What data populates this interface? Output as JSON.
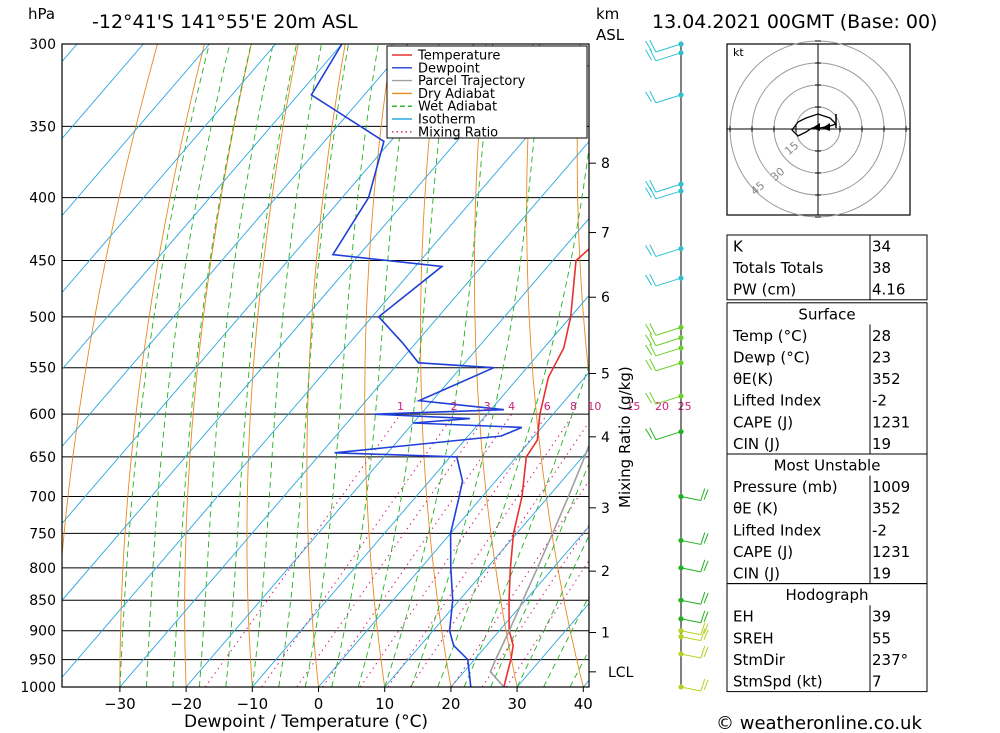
{
  "header": {
    "location": "-12°41'S  141°55'E  20m  ASL",
    "datetime": "13.04.2021  00GMT  (Base: 00)",
    "pressure_unit": "hPa",
    "height_unit_km": "km",
    "height_unit_asl": "ASL"
  },
  "footer": {
    "credit": "© weatheronline.co.uk"
  },
  "legend": [
    {
      "label": "Temperature",
      "color": "#e83030",
      "style": "solid"
    },
    {
      "label": "Dewpoint",
      "color": "#1f3fd8",
      "style": "solid"
    },
    {
      "label": "Parcel Trajectory",
      "color": "#a0a0a0",
      "style": "solid"
    },
    {
      "label": "Dry Adiabat",
      "color": "#e8891f",
      "style": "solid"
    },
    {
      "label": "Wet Adiabat",
      "color": "#22b022",
      "style": "dashed"
    },
    {
      "label": "Isotherm",
      "color": "#2aa7e0",
      "style": "solid"
    },
    {
      "label": "Mixing Ratio",
      "color": "#d0207a",
      "style": "dotted"
    }
  ],
  "chart_data": {
    "type": "line",
    "subtype": "skew-T log-P sounding",
    "xlabel": "Dewpoint / Temperature (°C)",
    "ylabel_left": "hPa",
    "ylabel_right": "Mixing Ratio (g/kg)",
    "x_ticks": [
      -30,
      -20,
      -10,
      0,
      10,
      20,
      30,
      40
    ],
    "pressure_levels": [
      300,
      350,
      400,
      450,
      500,
      550,
      600,
      650,
      700,
      750,
      800,
      850,
      900,
      950,
      1000
    ],
    "height_km_ticks": [
      {
        "label": "8",
        "p": 375
      },
      {
        "label": "7",
        "p": 427
      },
      {
        "label": "6",
        "p": 482
      },
      {
        "label": "5",
        "p": 556
      },
      {
        "label": "4",
        "p": 626
      },
      {
        "label": "3",
        "p": 715
      },
      {
        "label": "2",
        "p": 805
      },
      {
        "label": "1",
        "p": 903
      },
      {
        "label": "LCL",
        "p": 972
      }
    ],
    "mixing_ratio_labels": [
      "1",
      "2",
      "3",
      "4",
      "6",
      "8",
      "10",
      "15",
      "20",
      "25"
    ],
    "series": [
      {
        "name": "Temperature",
        "color": "#e83030",
        "points": [
          {
            "p": 1000,
            "t": 28
          },
          {
            "p": 980,
            "t": 27
          },
          {
            "p": 950,
            "t": 25.5
          },
          {
            "p": 925,
            "t": 24
          },
          {
            "p": 900,
            "t": 21.5
          },
          {
            "p": 850,
            "t": 17.5
          },
          {
            "p": 800,
            "t": 13.5
          },
          {
            "p": 750,
            "t": 9.5
          },
          {
            "p": 700,
            "t": 6
          },
          {
            "p": 650,
            "t": 1.5
          },
          {
            "p": 630,
            "t": 1
          },
          {
            "p": 600,
            "t": -2
          },
          {
            "p": 560,
            "t": -5.5
          },
          {
            "p": 530,
            "t": -7
          },
          {
            "p": 500,
            "t": -10
          },
          {
            "p": 450,
            "t": -16.5
          },
          {
            "p": 440,
            "t": -16
          },
          {
            "p": 400,
            "t": -22
          },
          {
            "p": 350,
            "t": -30
          },
          {
            "p": 300,
            "t": -39
          }
        ]
      },
      {
        "name": "Dewpoint",
        "color": "#1f3fd8",
        "points": [
          {
            "p": 1000,
            "t": 23
          },
          {
            "p": 950,
            "t": 19
          },
          {
            "p": 925,
            "t": 15
          },
          {
            "p": 900,
            "t": 12.5
          },
          {
            "p": 850,
            "t": 9
          },
          {
            "p": 800,
            "t": 4.5
          },
          {
            "p": 750,
            "t": 0
          },
          {
            "p": 700,
            "t": -3.5
          },
          {
            "p": 680,
            "t": -5
          },
          {
            "p": 650,
            "t": -9
          },
          {
            "p": 645,
            "t": -28
          },
          {
            "p": 625,
            "t": -5
          },
          {
            "p": 615,
            "t": -3
          },
          {
            "p": 610,
            "t": -20
          },
          {
            "p": 605,
            "t": -12
          },
          {
            "p": 600,
            "t": -27
          },
          {
            "p": 595,
            "t": -8
          },
          {
            "p": 585,
            "t": -22
          },
          {
            "p": 550,
            "t": -15
          },
          {
            "p": 545,
            "t": -27
          },
          {
            "p": 525,
            "t": -32
          },
          {
            "p": 500,
            "t": -39
          },
          {
            "p": 455,
            "t": -36
          },
          {
            "p": 445,
            "t": -54
          },
          {
            "p": 400,
            "t": -56
          },
          {
            "p": 360,
            "t": -61
          },
          {
            "p": 330,
            "t": -78
          },
          {
            "p": 300,
            "t": -80
          }
        ]
      },
      {
        "name": "Parcel Trajectory",
        "color": "#a0a0a0",
        "points": [
          {
            "p": 1000,
            "t": 28
          },
          {
            "p": 972,
            "t": 24
          },
          {
            "p": 950,
            "t": 23.2
          },
          {
            "p": 900,
            "t": 21.5
          },
          {
            "p": 850,
            "t": 19.6
          },
          {
            "p": 800,
            "t": 17.6
          },
          {
            "p": 750,
            "t": 15.4
          },
          {
            "p": 700,
            "t": 13
          },
          {
            "p": 650,
            "t": 10.3
          },
          {
            "p": 600,
            "t": 7.2
          },
          {
            "p": 550,
            "t": 3.8
          },
          {
            "p": 500,
            "t": -0.2
          },
          {
            "p": 450,
            "t": -5
          },
          {
            "p": 400,
            "t": -10.8
          },
          {
            "p": 370,
            "t": -14.8
          }
        ]
      }
    ],
    "wind_barbs_p": [
      300,
      305,
      330,
      390,
      395,
      440,
      465,
      510,
      520,
      530,
      545,
      580,
      620,
      700,
      760,
      800,
      850,
      880,
      900,
      910,
      940,
      1000
    ],
    "hodograph": {
      "unit": "kt",
      "ring_labels": [
        "15",
        "30",
        "45"
      ]
    },
    "indices_top": [
      {
        "label": "K",
        "value": "34"
      },
      {
        "label": "Totals Totals",
        "value": "38"
      },
      {
        "label": "PW (cm)",
        "value": "4.16"
      }
    ],
    "surface": {
      "title": "Surface",
      "rows": [
        {
          "label": "Temp (°C)",
          "value": "28"
        },
        {
          "label": "Dewp (°C)",
          "value": "23"
        },
        {
          "label": "θE(K)",
          "value": "352"
        },
        {
          "label": "Lifted Index",
          "value": "-2"
        },
        {
          "label": "CAPE (J)",
          "value": "1231"
        },
        {
          "label": "CIN (J)",
          "value": "19"
        }
      ]
    },
    "most_unstable": {
      "title": "Most Unstable",
      "rows": [
        {
          "label": "Pressure (mb)",
          "value": "1009"
        },
        {
          "label": "θE (K)",
          "value": "352"
        },
        {
          "label": "Lifted Index",
          "value": "-2"
        },
        {
          "label": "CAPE (J)",
          "value": "1231"
        },
        {
          "label": "CIN (J)",
          "value": "19"
        }
      ]
    },
    "hodograph_panel": {
      "title": "Hodograph",
      "rows": [
        {
          "label": "EH",
          "value": "39"
        },
        {
          "label": "SREH",
          "value": "55"
        },
        {
          "label": "StmDir",
          "value": "237°"
        },
        {
          "label": "StmSpd (kt)",
          "value": "7"
        }
      ]
    }
  }
}
